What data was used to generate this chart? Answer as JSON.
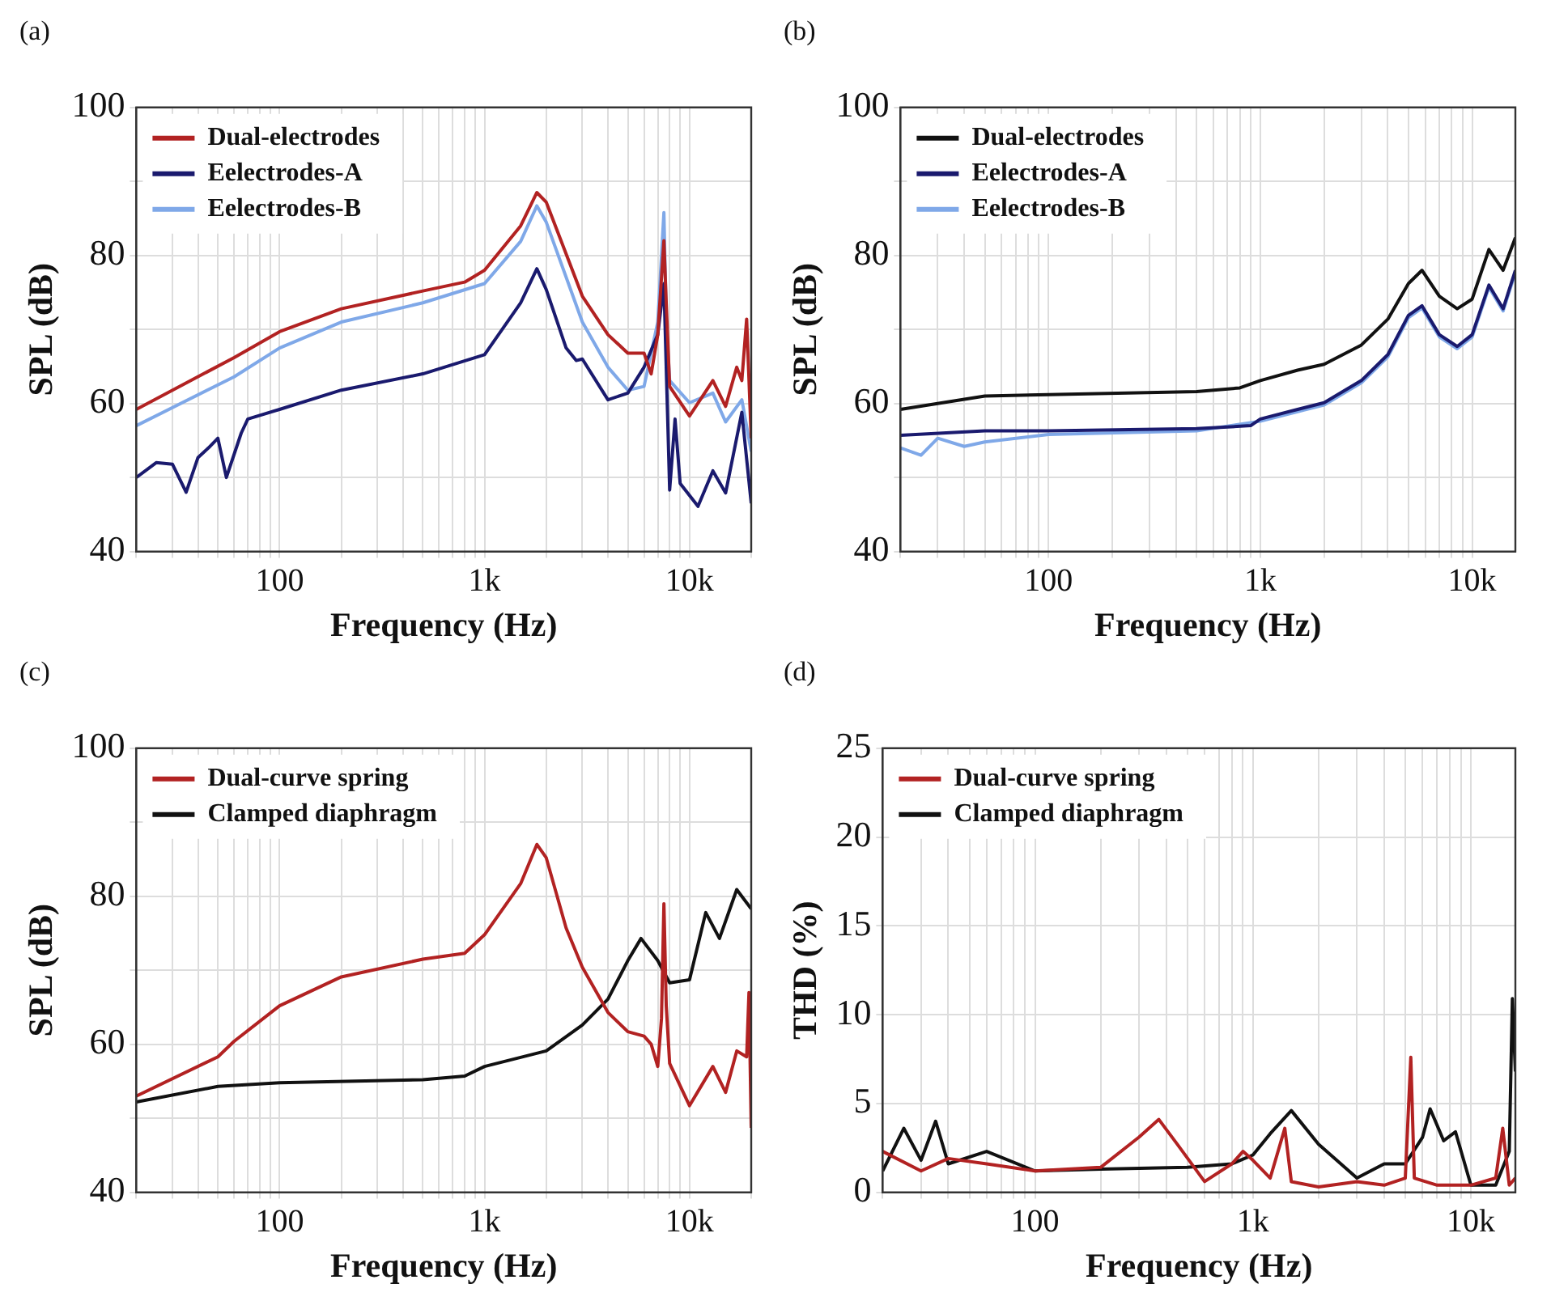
{
  "chart_data": [
    {
      "type": "line",
      "title": "(a)",
      "xlabel": "Frequency (Hz)",
      "ylabel": "SPL (dB)",
      "log": "x",
      "xlim": [
        20,
        20000
      ],
      "ylim": [
        40,
        100
      ],
      "grid": true,
      "legend": "top left",
      "marker": "none",
      "line_style": "solid",
      "xticks": [
        {
          "value": 20,
          "label": null
        },
        {
          "value": 30,
          "label": null
        },
        {
          "value": 40,
          "label": null
        },
        {
          "value": 50,
          "label": null
        },
        {
          "value": 60,
          "label": null
        },
        {
          "value": 70,
          "label": null
        },
        {
          "value": 80,
          "label": null
        },
        {
          "value": 90,
          "label": null
        },
        {
          "value": 100,
          "label": "100"
        },
        {
          "value": 200,
          "label": null
        },
        {
          "value": 300,
          "label": null
        },
        {
          "value": 400,
          "label": null
        },
        {
          "value": 500,
          "label": null
        },
        {
          "value": 600,
          "label": null
        },
        {
          "value": 700,
          "label": null
        },
        {
          "value": 800,
          "label": null
        },
        {
          "value": 900,
          "label": null
        },
        {
          "value": 1000,
          "label": "1k"
        },
        {
          "value": 2000,
          "label": null
        },
        {
          "value": 3000,
          "label": null
        },
        {
          "value": 4000,
          "label": null
        },
        {
          "value": 5000,
          "label": null
        },
        {
          "value": 6000,
          "label": null
        },
        {
          "value": 7000,
          "label": null
        },
        {
          "value": 8000,
          "label": null
        },
        {
          "value": 9000,
          "label": null
        },
        {
          "value": 10000,
          "label": "10k"
        },
        {
          "value": 20000,
          "label": null
        }
      ],
      "yticks": [
        40,
        {
          "value": 50,
          "label": null
        },
        60,
        {
          "value": 70,
          "label": null
        },
        80,
        {
          "value": 90,
          "label": null
        },
        100
      ],
      "series": [
        {
          "name": "Dual-electrodes",
          "color": "#b22222",
          "x": [
            20,
            60,
            100,
            200,
            500,
            800,
            1000,
            1500,
            1800,
            2000,
            3000,
            4000,
            5000,
            6000,
            6500,
            7000,
            7500,
            7700,
            8000,
            10000,
            13000,
            15000,
            17000,
            18000,
            19000,
            20000
          ],
          "values": [
            59.2,
            66.2,
            69.7,
            72.8,
            75.2,
            76.4,
            78,
            84,
            88.5,
            87.2,
            74.5,
            69.3,
            66.8,
            66.8,
            64,
            69.3,
            82,
            73.6,
            62.3,
            58.3,
            63.1,
            59.6,
            64.9,
            63.1,
            71.4,
            55.3
          ]
        },
        {
          "name": "Eelectrodes-A",
          "color": "#1a1a6e",
          "x": [
            20,
            25,
            30,
            35,
            40,
            45,
            50,
            55,
            65,
            70,
            100,
            200,
            500,
            1000,
            1500,
            1800,
            2000,
            2500,
            2800,
            3000,
            4000,
            5000,
            6000,
            7000,
            7500,
            8000,
            8500,
            9000,
            11000,
            13000,
            15000,
            18000,
            20000
          ],
          "values": [
            50,
            52,
            51.8,
            48,
            52.7,
            54,
            55.3,
            50,
            56,
            57.9,
            59.2,
            61.8,
            64,
            66.6,
            73.6,
            78.2,
            75.4,
            67.5,
            65.8,
            66,
            60.5,
            61.4,
            64.9,
            69.3,
            76.2,
            48.3,
            57.9,
            49.2,
            46.1,
            50.9,
            47.9,
            58.8,
            46.5
          ]
        },
        {
          "name": "Eelectrodes-B",
          "color": "#7fa8e8",
          "x": [
            20,
            60,
            100,
            200,
            500,
            1000,
            1500,
            1800,
            2000,
            3000,
            4000,
            5000,
            6000,
            7000,
            7500,
            7700,
            8000,
            10000,
            13000,
            15000,
            18000,
            20000
          ],
          "values": [
            57,
            63.6,
            67.5,
            71,
            73.6,
            76.2,
            81.9,
            86.7,
            84.5,
            71,
            64.9,
            61.8,
            62.3,
            71,
            85.8,
            71,
            63.1,
            60.1,
            61.4,
            57.5,
            60.5,
            53.5
          ]
        }
      ]
    },
    {
      "type": "line",
      "title": "(b)",
      "xlabel": "Frequency (Hz)",
      "ylabel": "SPL (dB)",
      "log": "x",
      "xlim": [
        20,
        16000
      ],
      "ylim": [
        40,
        100
      ],
      "grid": true,
      "legend": "top left",
      "marker": "none",
      "line_style": "solid",
      "xticks": [
        {
          "value": 20,
          "label": null
        },
        {
          "value": 30,
          "label": null
        },
        {
          "value": 40,
          "label": null
        },
        {
          "value": 50,
          "label": null
        },
        {
          "value": 60,
          "label": null
        },
        {
          "value": 70,
          "label": null
        },
        {
          "value": 80,
          "label": null
        },
        {
          "value": 90,
          "label": null
        },
        {
          "value": 100,
          "label": "100"
        },
        {
          "value": 200,
          "label": null
        },
        {
          "value": 300,
          "label": null
        },
        {
          "value": 400,
          "label": null
        },
        {
          "value": 500,
          "label": null
        },
        {
          "value": 600,
          "label": null
        },
        {
          "value": 700,
          "label": null
        },
        {
          "value": 800,
          "label": null
        },
        {
          "value": 900,
          "label": null
        },
        {
          "value": 1000,
          "label": "1k"
        },
        {
          "value": 2000,
          "label": null
        },
        {
          "value": 3000,
          "label": null
        },
        {
          "value": 4000,
          "label": null
        },
        {
          "value": 5000,
          "label": null
        },
        {
          "value": 6000,
          "label": null
        },
        {
          "value": 7000,
          "label": null
        },
        {
          "value": 8000,
          "label": null
        },
        {
          "value": 9000,
          "label": null
        },
        {
          "value": 10000,
          "label": "10k"
        }
      ],
      "yticks": [
        40,
        {
          "value": 50,
          "label": null
        },
        60,
        {
          "value": 70,
          "label": null
        },
        80,
        {
          "value": 90,
          "label": null
        },
        100
      ],
      "series": [
        {
          "name": "Dual-electrodes",
          "color": "#111111",
          "x": [
            20,
            50,
            100,
            500,
            800,
            1000,
            1500,
            2000,
            3000,
            4000,
            5000,
            5800,
            7000,
            8500,
            10000,
            12000,
            14000,
            16000
          ],
          "values": [
            59.2,
            61,
            61.2,
            61.6,
            62.1,
            63.1,
            64.5,
            65.3,
            67.9,
            71.4,
            76.2,
            78,
            74.5,
            72.8,
            74.1,
            80.8,
            78,
            82.4
          ]
        },
        {
          "name": "Eelectrodes-A",
          "color": "#1a1a6e",
          "x": [
            20,
            50,
            100,
            500,
            900,
            1000,
            1500,
            2000,
            3000,
            4000,
            5000,
            5800,
            7000,
            8500,
            10000,
            12000,
            14000,
            16000
          ],
          "values": [
            55.7,
            56.3,
            56.3,
            56.6,
            57,
            57.9,
            59.2,
            60.1,
            63.1,
            66.6,
            71.9,
            73.2,
            69.3,
            67.7,
            69.3,
            76,
            72.8,
            78
          ]
        },
        {
          "name": "Eelectrodes-B",
          "color": "#7fa8e8",
          "x": [
            20,
            25,
            30,
            40,
            50,
            100,
            500,
            1000,
            1500,
            2000,
            3000,
            4000,
            5000,
            5800,
            7000,
            8500,
            10000,
            12000,
            14000,
            16000
          ],
          "values": [
            54,
            53,
            55.3,
            54.2,
            54.8,
            55.8,
            56.3,
            57.6,
            58.9,
            59.8,
            62.8,
            66.3,
            71.6,
            72.9,
            69,
            67.4,
            69,
            75.7,
            72.5,
            77.7
          ]
        }
      ]
    },
    {
      "type": "line",
      "title": "(c)",
      "xlabel": "Frequency (Hz)",
      "ylabel": "SPL (dB)",
      "log": "x",
      "xlim": [
        20,
        20000
      ],
      "ylim": [
        40,
        100
      ],
      "grid": true,
      "legend": "top left",
      "marker": "none",
      "line_style": "solid",
      "xticks": [
        {
          "value": 20,
          "label": null
        },
        {
          "value": 30,
          "label": null
        },
        {
          "value": 40,
          "label": null
        },
        {
          "value": 50,
          "label": null
        },
        {
          "value": 60,
          "label": null
        },
        {
          "value": 70,
          "label": null
        },
        {
          "value": 80,
          "label": null
        },
        {
          "value": 90,
          "label": null
        },
        {
          "value": 100,
          "label": "100"
        },
        {
          "value": 200,
          "label": null
        },
        {
          "value": 300,
          "label": null
        },
        {
          "value": 400,
          "label": null
        },
        {
          "value": 500,
          "label": null
        },
        {
          "value": 600,
          "label": null
        },
        {
          "value": 700,
          "label": null
        },
        {
          "value": 800,
          "label": null
        },
        {
          "value": 900,
          "label": null
        },
        {
          "value": 1000,
          "label": "1k"
        },
        {
          "value": 2000,
          "label": null
        },
        {
          "value": 3000,
          "label": null
        },
        {
          "value": 4000,
          "label": null
        },
        {
          "value": 5000,
          "label": null
        },
        {
          "value": 6000,
          "label": null
        },
        {
          "value": 7000,
          "label": null
        },
        {
          "value": 8000,
          "label": null
        },
        {
          "value": 9000,
          "label": null
        },
        {
          "value": 10000,
          "label": "10k"
        },
        {
          "value": 20000,
          "label": null
        }
      ],
      "yticks": [
        40,
        {
          "value": 50,
          "label": null
        },
        60,
        {
          "value": 70,
          "label": null
        },
        80,
        {
          "value": 90,
          "label": null
        },
        100
      ],
      "series": [
        {
          "name": "Dual-curve spring",
          "color": "#b22222",
          "x": [
            20,
            50,
            60,
            100,
            200,
            500,
            800,
            1000,
            1500,
            1800,
            2000,
            2500,
            3000,
            4000,
            5000,
            6000,
            6500,
            7000,
            7300,
            7500,
            7700,
            8000,
            10000,
            13000,
            15000,
            17000,
            19000,
            19500,
            20000
          ],
          "values": [
            53,
            58.3,
            60.4,
            65.2,
            69.1,
            71.5,
            72.3,
            74.8,
            81.7,
            87,
            85.2,
            75.7,
            70.4,
            64.3,
            61.7,
            61.1,
            60,
            57,
            63.5,
            79,
            65.2,
            57.4,
            51.7,
            57,
            53.5,
            59.1,
            58.3,
            67,
            48.7
          ]
        },
        {
          "name": "Clamped diaphragm",
          "color": "#111111",
          "x": [
            20,
            50,
            100,
            500,
            800,
            1000,
            2000,
            3000,
            4000,
            5000,
            5800,
            7000,
            8000,
            10000,
            12000,
            14000,
            17000,
            20000
          ],
          "values": [
            52.2,
            54.3,
            54.8,
            55.2,
            55.7,
            57,
            59.1,
            62.6,
            66.1,
            71.3,
            74.3,
            71.3,
            68.3,
            68.7,
            77.8,
            74.3,
            80.9,
            78.3
          ]
        }
      ]
    },
    {
      "type": "line",
      "title": "(d)",
      "xlabel": "Frequency (Hz)",
      "ylabel": "THD (%)",
      "log": "x",
      "xlim": [
        20,
        16000
      ],
      "ylim": [
        0,
        25
      ],
      "grid": true,
      "legend": "top left",
      "marker": "none",
      "line_style": "solid",
      "xticks": [
        {
          "value": 20,
          "label": null
        },
        {
          "value": 30,
          "label": null
        },
        {
          "value": 40,
          "label": null
        },
        {
          "value": 50,
          "label": null
        },
        {
          "value": 60,
          "label": null
        },
        {
          "value": 70,
          "label": null
        },
        {
          "value": 80,
          "label": null
        },
        {
          "value": 90,
          "label": null
        },
        {
          "value": 100,
          "label": "100"
        },
        {
          "value": 200,
          "label": null
        },
        {
          "value": 300,
          "label": null
        },
        {
          "value": 400,
          "label": null
        },
        {
          "value": 500,
          "label": null
        },
        {
          "value": 600,
          "label": null
        },
        {
          "value": 700,
          "label": null
        },
        {
          "value": 800,
          "label": null
        },
        {
          "value": 900,
          "label": null
        },
        {
          "value": 1000,
          "label": "1k"
        },
        {
          "value": 2000,
          "label": null
        },
        {
          "value": 3000,
          "label": null
        },
        {
          "value": 4000,
          "label": null
        },
        {
          "value": 5000,
          "label": null
        },
        {
          "value": 6000,
          "label": null
        },
        {
          "value": 7000,
          "label": null
        },
        {
          "value": 8000,
          "label": null
        },
        {
          "value": 9000,
          "label": null
        },
        {
          "value": 10000,
          "label": "10k"
        }
      ],
      "yticks": [
        0,
        5,
        10,
        15,
        20,
        25
      ],
      "series": [
        {
          "name": "Dual-curve spring",
          "color": "#b22222",
          "x": [
            20,
            30,
            40,
            60,
            100,
            200,
            300,
            370,
            450,
            600,
            800,
            900,
            1000,
            1200,
            1400,
            1500,
            2000,
            3000,
            4000,
            5000,
            5300,
            5500,
            7000,
            10000,
            13000,
            14000,
            15000,
            16000
          ],
          "values": [
            2.3,
            1.2,
            1.9,
            1.6,
            1.2,
            1.4,
            3.1,
            4.1,
            2.7,
            0.6,
            1.6,
            2.3,
            1.8,
            0.8,
            3.6,
            0.6,
            0.3,
            0.6,
            0.4,
            0.8,
            7.6,
            0.8,
            0.4,
            0.4,
            0.8,
            3.6,
            0.4,
            0.8
          ]
        },
        {
          "name": "Clamped diaphragm",
          "color": "#111111",
          "x": [
            20,
            25,
            30,
            35,
            40,
            60,
            100,
            200,
            500,
            800,
            1000,
            1200,
            1500,
            2000,
            3000,
            4000,
            5000,
            6000,
            6500,
            7500,
            8500,
            10000,
            13000,
            15000,
            15500,
            16000
          ],
          "values": [
            1.2,
            3.6,
            1.8,
            4,
            1.6,
            2.3,
            1.2,
            1.3,
            1.4,
            1.6,
            2.1,
            3.3,
            4.6,
            2.7,
            0.8,
            1.6,
            1.6,
            3.1,
            4.7,
            2.9,
            3.4,
            0.4,
            0.4,
            2.3,
            10.9,
            6.8
          ]
        }
      ]
    }
  ]
}
